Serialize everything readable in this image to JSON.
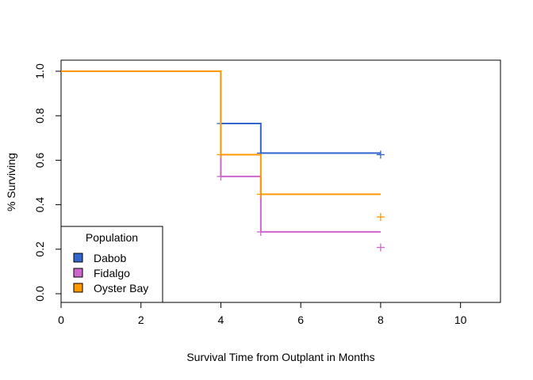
{
  "chart_data": {
    "type": "line",
    "step": true,
    "xlabel": "Survival Time from Outplant in Months",
    "ylabel": "% Surviving",
    "xlim": [
      0,
      11
    ],
    "ylim": [
      0,
      1
    ],
    "xticks": [
      "0",
      "2",
      "4",
      "6",
      "8",
      "10"
    ],
    "yticks": [
      "0.0",
      "0.2",
      "0.4",
      "0.6",
      "0.8",
      "1.0"
    ],
    "legend": {
      "title": "Population",
      "placement": "bottom-left"
    },
    "series": [
      {
        "name": "Dabob",
        "color": "#3366cc",
        "steps": [
          [
            0,
            1.0
          ],
          [
            4,
            0.765
          ],
          [
            5,
            0.632
          ],
          [
            8,
            0.632
          ]
        ],
        "censor": [
          [
            4,
            0.765
          ],
          [
            5,
            0.632
          ],
          [
            8,
            0.625
          ]
        ]
      },
      {
        "name": "Fidalgo",
        "color": "#cc66cc",
        "steps": [
          [
            0,
            1.0
          ],
          [
            4,
            0.527
          ],
          [
            5,
            0.278
          ],
          [
            8,
            0.278
          ]
        ],
        "censor": [
          [
            4,
            0.527
          ],
          [
            5,
            0.278
          ],
          [
            8,
            0.208
          ]
        ]
      },
      {
        "name": "Oyster Bay",
        "color": "#ff9900",
        "steps": [
          [
            0,
            1.0
          ],
          [
            4,
            0.625
          ],
          [
            5,
            0.447
          ],
          [
            8,
            0.447
          ]
        ],
        "censor": [
          [
            4,
            0.625
          ],
          [
            5,
            0.447
          ],
          [
            8,
            0.345
          ]
        ]
      }
    ]
  }
}
